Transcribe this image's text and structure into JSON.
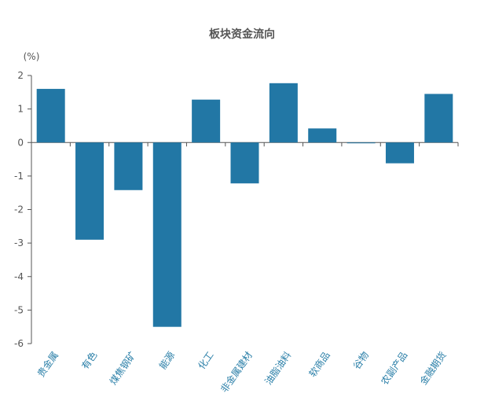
{
  "chart_data": {
    "type": "bar",
    "title": "板块资金流向",
    "ylabel": "(%)",
    "xlabel": "",
    "categories": [
      "贵金属",
      "有色",
      "煤焦钢矿",
      "能源",
      "化工",
      "非金属建材",
      "油脂油料",
      "软商品",
      "谷物",
      "农副产品",
      "金融期货"
    ],
    "values": [
      1.6,
      -2.9,
      -1.42,
      -5.5,
      1.28,
      -1.22,
      1.77,
      0.42,
      -0.02,
      -0.62,
      1.45
    ],
    "ylim": [
      -6,
      2
    ],
    "yticks": [
      2,
      1,
      0,
      -1,
      -2,
      -3,
      -4,
      -5,
      -6
    ],
    "grid": false,
    "legend": "none",
    "bar_color": "#2277a5"
  }
}
